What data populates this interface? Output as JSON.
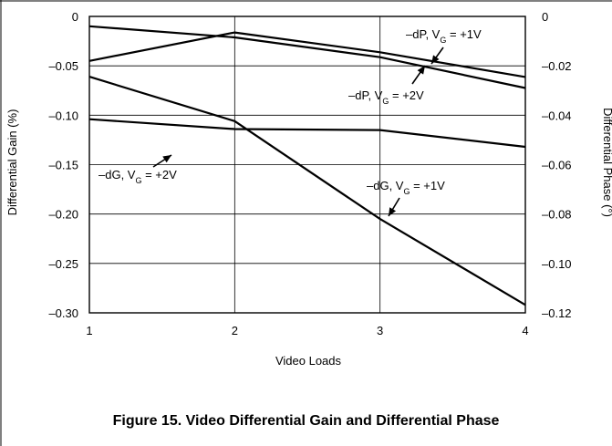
{
  "chart_data": {
    "type": "line",
    "x": [
      1,
      2,
      3,
      4
    ],
    "xlabel": "Video Loads",
    "ylabel_left": "Differential Gain (%)",
    "ylabel_right": "Differential Phase (°)",
    "ylim_left": [
      -0.3,
      0
    ],
    "ylim_right": [
      -0.12,
      0
    ],
    "xlim": [
      1,
      4
    ],
    "x_ticks": [
      "1",
      "2",
      "3",
      "4"
    ],
    "y_ticks_left": [
      "0",
      "–0.05",
      "–0.10",
      "–0.15",
      "–0.20",
      "–0.25",
      "–0.30"
    ],
    "y_ticks_right": [
      "0",
      "–0.02",
      "–0.04",
      "–0.06",
      "–0.08",
      "–0.10",
      "–0.12"
    ],
    "grid": true,
    "series": [
      {
        "name": "–dP, V_G = +1V",
        "label_main": "–dP, V",
        "label_sub": "G",
        "label_tail": " = +1V",
        "axis": "right",
        "values": [
          -0.018,
          -0.0065,
          -0.0145,
          -0.0245
        ]
      },
      {
        "name": "–dP, V_G = +2V",
        "label_main": "–dP, V",
        "label_sub": "G",
        "label_tail": " = +2V",
        "axis": "right",
        "values": [
          -0.004,
          -0.0085,
          -0.0165,
          -0.029
        ]
      },
      {
        "name": "–dG, V_G = +2V",
        "label_main": "–dG, V",
        "label_sub": "G",
        "label_tail": " = +2V",
        "axis": "left",
        "values": [
          -0.104,
          -0.114,
          -0.115,
          -0.132
        ]
      },
      {
        "name": "–dG, V_G = +1V",
        "label_main": "–dG, V",
        "label_sub": "G",
        "label_tail": " = +1V",
        "axis": "left",
        "values": [
          -0.061,
          -0.106,
          -0.205,
          -0.292
        ]
      }
    ]
  },
  "caption": "Figure 15. Video Differential Gain and Differential Phase"
}
